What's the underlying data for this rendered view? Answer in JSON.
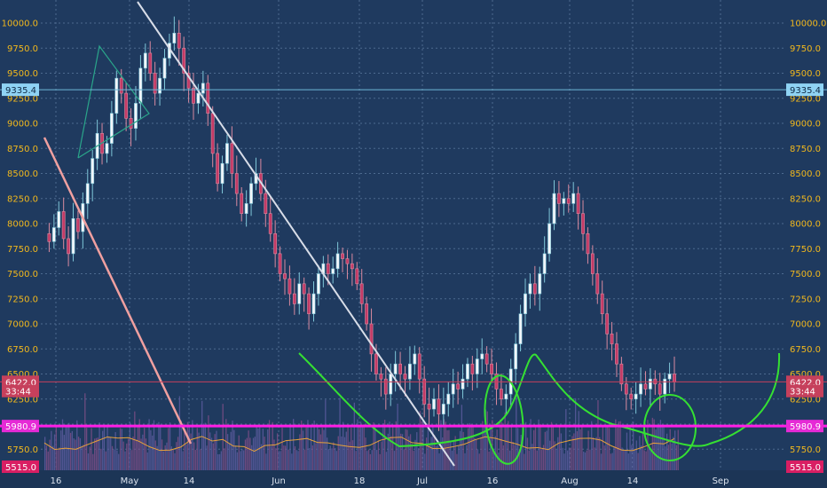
{
  "chart_data": {
    "type": "candlestick",
    "ylim": [
      5515,
      10140
    ],
    "price_axis_ticks": [
      "5750.0",
      "6000.0",
      "6250.0",
      "6500.0",
      "6750.0",
      "7000.0",
      "7250.0",
      "7500.0",
      "7750.0",
      "8000.0",
      "8250.0",
      "8500.0",
      "8750.0",
      "9000.0",
      "9250.0",
      "9500.0",
      "9750.0",
      "10000.0"
    ],
    "time_axis_ticks": [
      "16",
      "May",
      "14",
      "Jun",
      "18",
      "Jul",
      "16",
      "Aug",
      "14",
      "Sep"
    ],
    "price_markers": [
      {
        "label": "9335.4",
        "value": 9335.4,
        "color": "#8fd3f4"
      },
      {
        "label": "6422.0",
        "value": 6422.0,
        "color": "#c6405c"
      },
      {
        "label": "33:44",
        "value": 6330,
        "color": "#c6405c"
      },
      {
        "label": "5980.9",
        "value": 5980.9,
        "color": "#e62ad6"
      },
      {
        "label": "5515.0",
        "value": 5515.0,
        "color": "#d91e63"
      }
    ],
    "horizontal_lines": [
      {
        "value": 9335.4,
        "color": "#6fb8d8"
      },
      {
        "value": 6422.0,
        "color": "#c6405c"
      },
      {
        "value": 5980.9,
        "color": "#ff1ee6"
      }
    ],
    "close_series": [
      7900,
      7820,
      7960,
      8120,
      7850,
      7700,
      8050,
      7920,
      8200,
      8400,
      8650,
      8900,
      8700,
      8800,
      9100,
      9450,
      9300,
      9050,
      8950,
      9200,
      9550,
      9700,
      9500,
      9300,
      9450,
      9650,
      9800,
      9900,
      9750,
      9500,
      9350,
      9200,
      9300,
      9400,
      9100,
      8700,
      8400,
      8600,
      8800,
      8500,
      8300,
      8100,
      8200,
      8400,
      8500,
      8300,
      8100,
      7900,
      7700,
      7500,
      7450,
      7300,
      7200,
      7400,
      7300,
      7100,
      7300,
      7500,
      7600,
      7500,
      7550,
      7700,
      7650,
      7600,
      7550,
      7400,
      7200,
      7000,
      6700,
      6500,
      6450,
      6300,
      6500,
      6600,
      6500,
      6450,
      6600,
      6700,
      6450,
      6200,
      6150,
      6250,
      6100,
      6200,
      6300,
      6400,
      6350,
      6450,
      6600,
      6500,
      6650,
      6700,
      6600,
      6500,
      6350,
      6250,
      6300,
      6550,
      6800,
      7100,
      7300,
      7400,
      7300,
      7500,
      7700,
      8000,
      8300,
      8200,
      8250,
      8200,
      8300,
      8100,
      7900,
      7700,
      7500,
      7300,
      7100,
      6900,
      6800,
      6600,
      6400,
      6300,
      6250,
      6300,
      6400,
      6350,
      6450,
      6400,
      6300,
      6450,
      6500,
      6420
    ]
  },
  "drawings": [
    {
      "kind": "trendline",
      "color": "#f0a0a0",
      "from": [
        0.05,
        8850
      ],
      "to": [
        0.24,
        5515
      ]
    },
    {
      "kind": "trendline",
      "color": "#d8dde8",
      "from": [
        0.17,
        10200
      ],
      "to": [
        0.58,
        5515
      ]
    },
    {
      "kind": "triangle",
      "color": "#2aa58a"
    },
    {
      "kind": "freehand-arc",
      "color": "#35e032"
    },
    {
      "kind": "freehand-ellipse",
      "color": "#35e032"
    }
  ]
}
